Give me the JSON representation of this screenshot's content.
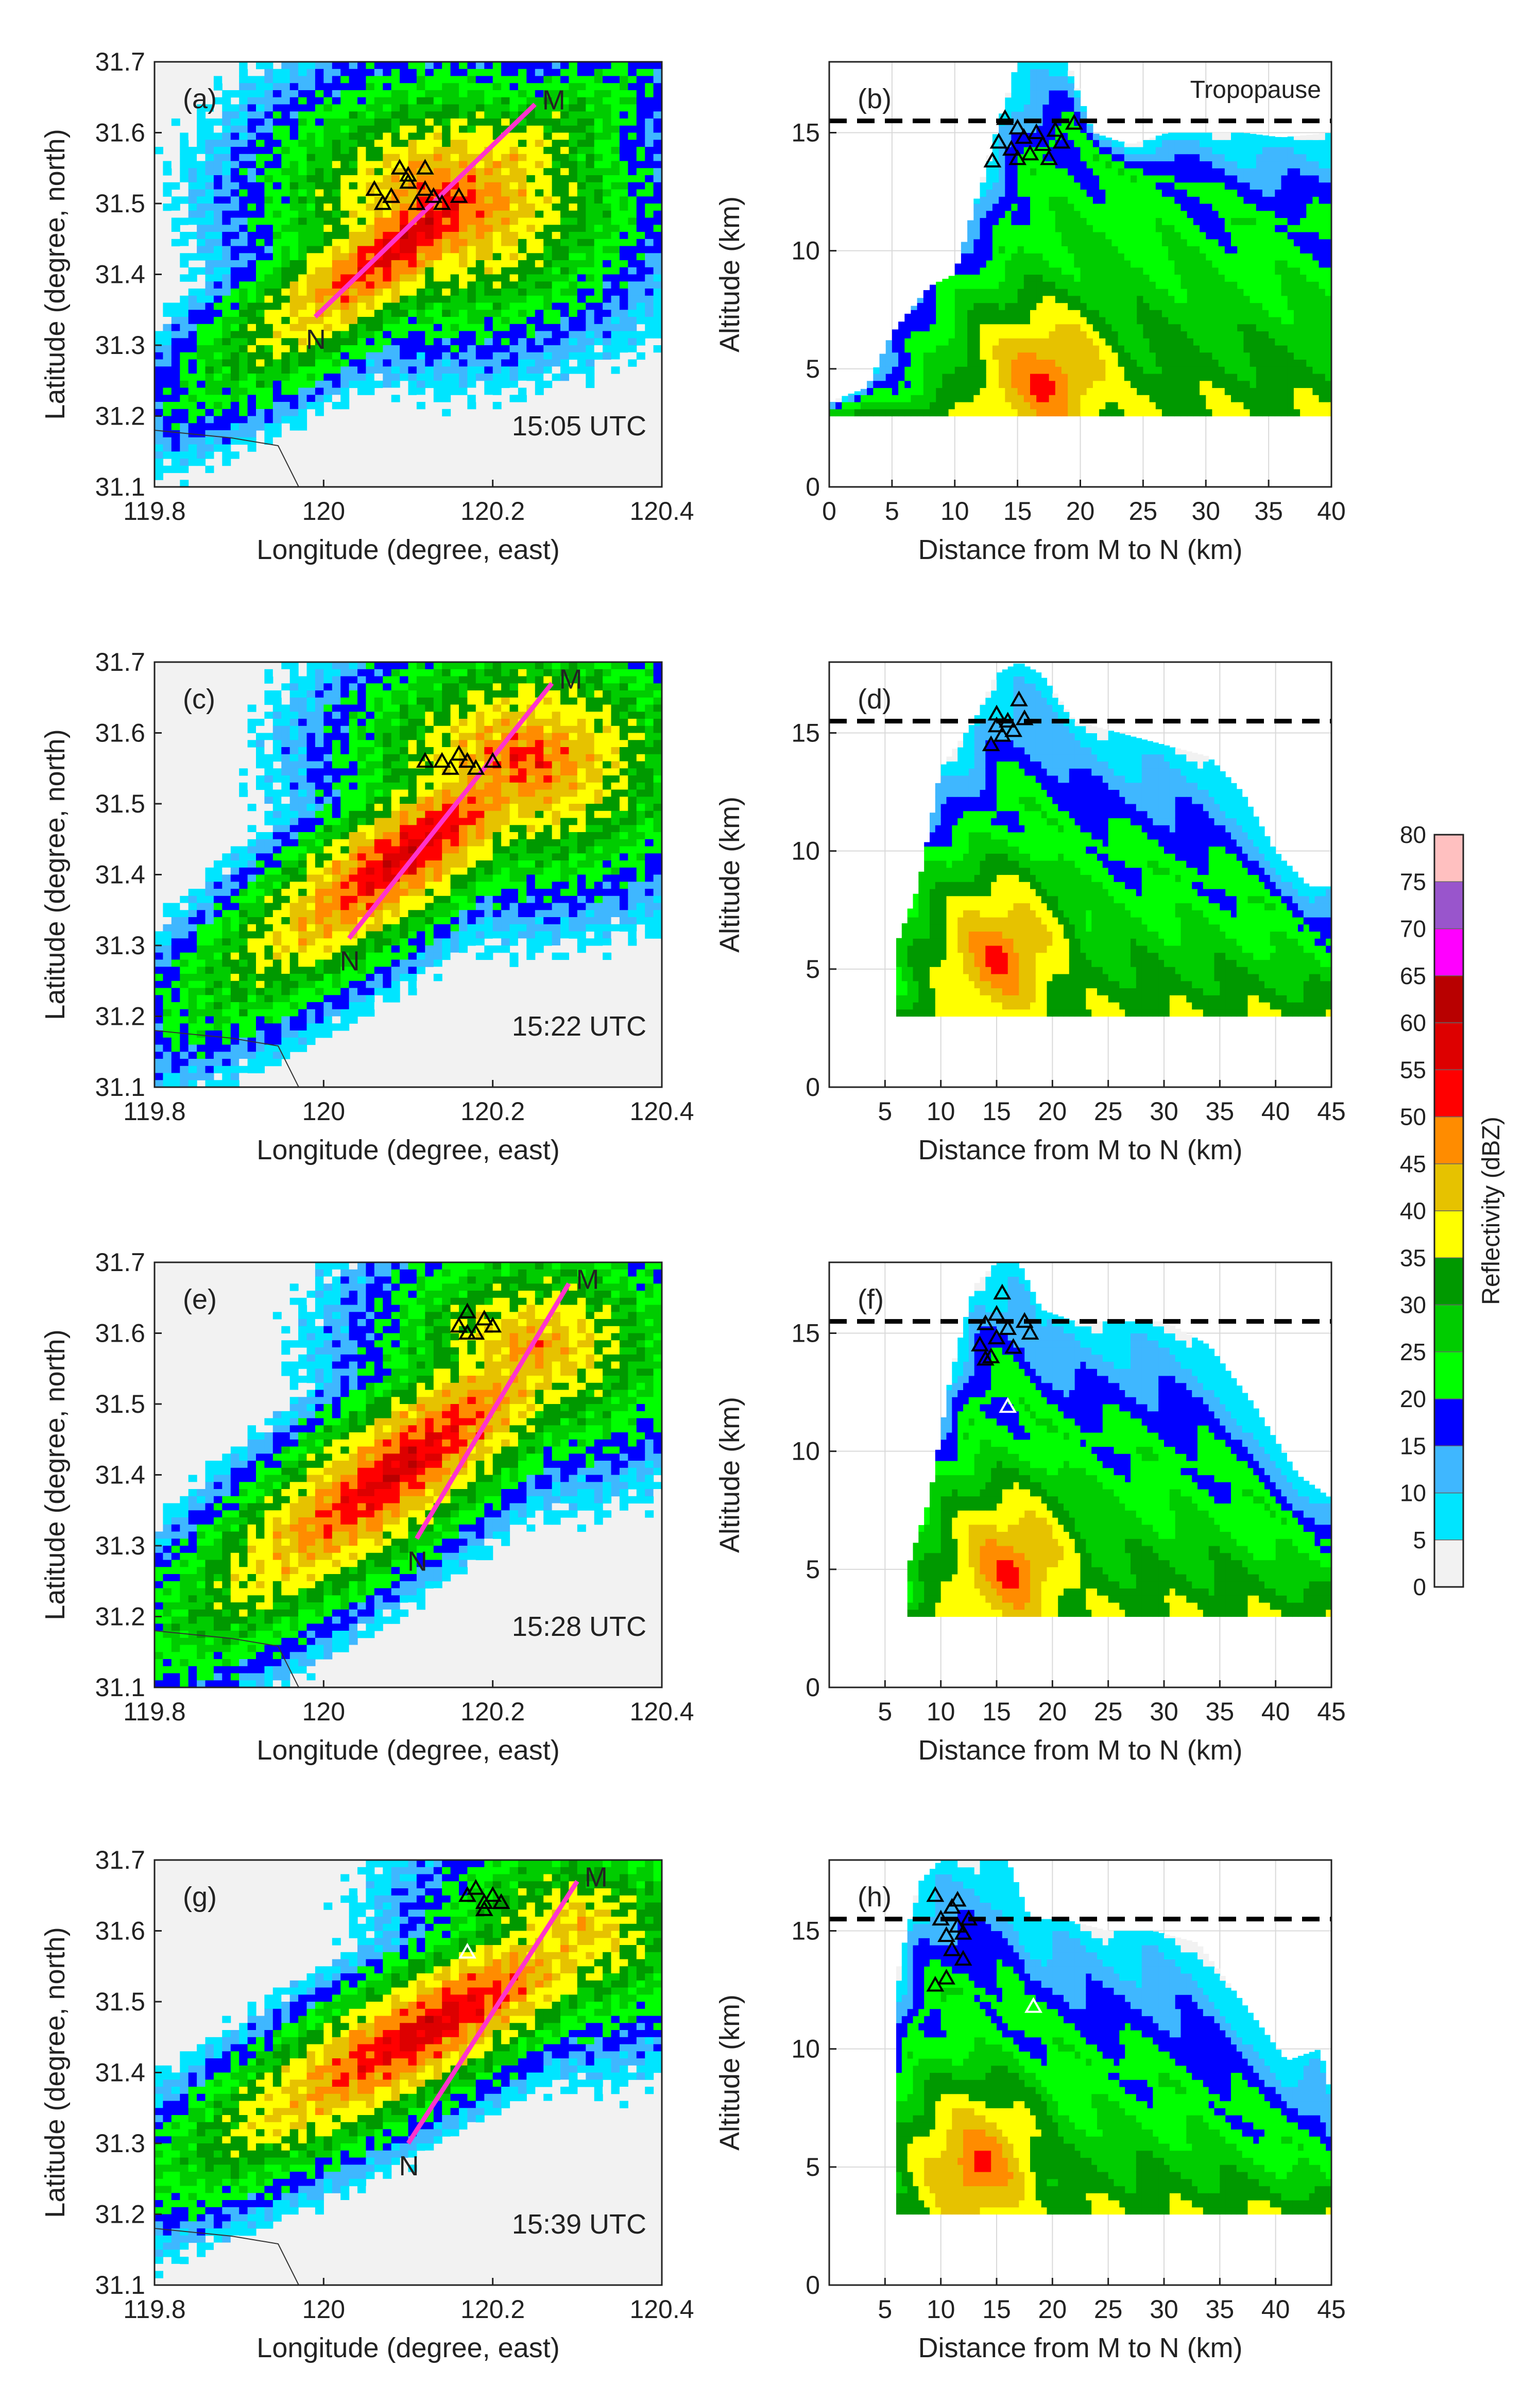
{
  "colorbar": {
    "label": "Reflectivity (dBZ)",
    "levels": [
      0,
      5,
      10,
      15,
      20,
      25,
      30,
      35,
      40,
      45,
      50,
      55,
      60,
      65,
      70,
      75,
      80
    ],
    "colors": [
      "#f2f2f2",
      "#00e5ff",
      "#3fb7ff",
      "#0000ff",
      "#00ff00",
      "#00cc00",
      "#009900",
      "#ffff00",
      "#e6c200",
      "#ff8c00",
      "#ff0000",
      "#dd0000",
      "#b80000",
      "#ff00ff",
      "#9955cc",
      "#ffc0c0"
    ]
  },
  "tropopause_label": "Tropopause",
  "tropopause_km": 15.5,
  "chart_data": [
    {
      "type": "heatmap",
      "panel_label": "(a)",
      "time_label": "15:05 UTC",
      "xlabel": "Longitude (degree, east)",
      "ylabel": "Latitude (degree, north)",
      "xlim": [
        119.8,
        120.4
      ],
      "ylim": [
        31.1,
        31.7
      ],
      "xticks": [
        "119.8",
        "120",
        "120.2",
        "120.4"
      ],
      "yticks": [
        "31.1",
        "31.2",
        "31.3",
        "31.4",
        "31.5",
        "31.6",
        "31.7"
      ],
      "line_endpoints": [
        {
          "label": "M",
          "lon": 120.25,
          "lat": 31.64
        },
        {
          "label": "N",
          "lon": 119.99,
          "lat": 31.34
        }
      ],
      "storm_axis": [
        [
          119.86,
          31.24
        ],
        [
          120.34,
          31.66
        ]
      ],
      "storm_halfwidth": [
        0.17,
        0.1
      ],
      "core": {
        "lon": 120.15,
        "lat": 31.5,
        "dbz": 54
      },
      "lightning": [
        [
          120.06,
          31.52
        ],
        [
          120.08,
          31.51
        ],
        [
          120.09,
          31.55
        ],
        [
          120.1,
          31.53
        ],
        [
          120.11,
          31.5
        ],
        [
          120.12,
          31.52
        ],
        [
          120.13,
          31.51
        ],
        [
          120.14,
          31.5
        ],
        [
          120.16,
          31.51
        ],
        [
          120.07,
          31.5
        ],
        [
          120.1,
          31.54
        ],
        [
          120.12,
          31.55
        ]
      ]
    },
    {
      "type": "heatmap",
      "panel_label": "(b)",
      "xlabel": "Distance from M to N (km)",
      "ylabel": "Altitude (km)",
      "xlim": [
        0,
        40
      ],
      "ylim": [
        0,
        18
      ],
      "xticks": [
        "0",
        "5",
        "10",
        "15",
        "20",
        "25",
        "30",
        "35",
        "40"
      ],
      "yticks": [
        "0",
        "5",
        "10",
        "15"
      ],
      "show_tropopause_label": true,
      "columns": [
        [
          0,
          3.0,
          3.6,
          3.3
        ],
        [
          3,
          3.0,
          4.2,
          3.6
        ],
        [
          5,
          3.0,
          6.5,
          4.0
        ],
        [
          8,
          3.0,
          8.5,
          5.0
        ],
        [
          10,
          3.0,
          9.0,
          6.5
        ],
        [
          13,
          3.0,
          14.5,
          8.5
        ],
        [
          15,
          3.0,
          18.0,
          12.0
        ],
        [
          17,
          3.0,
          18.0,
          14.0
        ],
        [
          19,
          3.0,
          18.0,
          15.0
        ],
        [
          21,
          3.0,
          15.0,
          14.0
        ],
        [
          24,
          3.0,
          14.5,
          13.0
        ],
        [
          27,
          3.0,
          15.0,
          13.0
        ],
        [
          30,
          3.0,
          15.0,
          12.0
        ],
        [
          33,
          3.0,
          15.0,
          11.0
        ],
        [
          36,
          3.0,
          14.8,
          11.0
        ],
        [
          40,
          3.0,
          15.0,
          10.5
        ]
      ],
      "core": {
        "x": 17,
        "z": 4.5,
        "dbz": 52
      },
      "lightning": [
        [
          13,
          13.8
        ],
        [
          13.5,
          14.6
        ],
        [
          14,
          15.6
        ],
        [
          14.5,
          14.3
        ],
        [
          15,
          13.9
        ],
        [
          15,
          15.2
        ],
        [
          15.5,
          14.8
        ],
        [
          16,
          14.1
        ],
        [
          16.5,
          15.0
        ],
        [
          17,
          14.5
        ],
        [
          17.5,
          13.9
        ],
        [
          18,
          15.1
        ],
        [
          18.5,
          14.6
        ],
        [
          19.5,
          15.4
        ]
      ]
    },
    {
      "type": "heatmap",
      "panel_label": "(c)",
      "time_label": "15:22 UTC",
      "xlabel": "Longitude (degree, east)",
      "ylabel": "Latitude (degree, north)",
      "xlim": [
        119.8,
        120.4
      ],
      "ylim": [
        31.1,
        31.7
      ],
      "xticks": [
        "119.8",
        "120",
        "120.2",
        "120.4"
      ],
      "yticks": [
        "31.1",
        "31.2",
        "31.3",
        "31.4",
        "31.5",
        "31.6",
        "31.7"
      ],
      "line_endpoints": [
        {
          "label": "M",
          "lon": 120.27,
          "lat": 31.67
        },
        {
          "label": "N",
          "lon": 120.03,
          "lat": 31.31
        }
      ],
      "storm_axis": [
        [
          119.84,
          31.2
        ],
        [
          120.36,
          31.66
        ]
      ],
      "storm_halfwidth": [
        0.18,
        0.11
      ],
      "core": {
        "lon": 120.24,
        "lat": 31.56,
        "dbz": 53
      },
      "lightning": [
        [
          120.12,
          31.56
        ],
        [
          120.14,
          31.56
        ],
        [
          120.15,
          31.55
        ],
        [
          120.16,
          31.57
        ],
        [
          120.17,
          31.56
        ],
        [
          120.18,
          31.55
        ],
        [
          120.2,
          31.56
        ]
      ]
    },
    {
      "type": "heatmap",
      "panel_label": "(d)",
      "xlabel": "Distance from M to N (km)",
      "ylabel": "Altitude (km)",
      "xlim": [
        0,
        45
      ],
      "ylim": [
        0,
        18
      ],
      "xticks": [
        "5",
        "10",
        "15",
        "20",
        "25",
        "30",
        "35",
        "40",
        "45"
      ],
      "yticks": [
        "0",
        "5",
        "10",
        "15"
      ],
      "columns": [
        [
          6,
          3.0,
          6.0,
          4.5
        ],
        [
          8,
          3.0,
          8.5,
          5.5
        ],
        [
          10,
          3.0,
          13.5,
          8.0
        ],
        [
          13,
          3.0,
          15.5,
          10.0
        ],
        [
          15,
          3.0,
          17.5,
          11.5
        ],
        [
          17,
          3.0,
          18.0,
          12.0
        ],
        [
          19,
          3.0,
          17.5,
          11.5
        ],
        [
          22,
          3.0,
          15.5,
          10.5
        ],
        [
          26,
          3.0,
          15.0,
          9.5
        ],
        [
          30,
          3.0,
          14.5,
          9.0
        ],
        [
          34,
          3.0,
          14.0,
          8.5
        ],
        [
          37,
          3.0,
          12.5,
          8.0
        ],
        [
          40,
          3.0,
          10.0,
          7.5
        ],
        [
          43,
          3.0,
          8.5,
          6.5
        ],
        [
          45,
          3.0,
          8.5,
          6.0
        ]
      ],
      "core": {
        "x": 15,
        "z": 5.5,
        "dbz": 52
      },
      "lightning": [
        [
          14.5,
          14.5
        ],
        [
          15,
          15.3
        ],
        [
          15.5,
          14.9
        ],
        [
          16,
          15.5
        ],
        [
          16.5,
          15.1
        ],
        [
          17,
          16.4
        ],
        [
          17.5,
          15.6
        ],
        [
          15,
          15.8
        ]
      ]
    },
    {
      "type": "heatmap",
      "panel_label": "(e)",
      "time_label": "15:28 UTC",
      "xlabel": "Longitude (degree, east)",
      "ylabel": "Latitude (degree, north)",
      "xlim": [
        119.8,
        120.4
      ],
      "ylim": [
        31.1,
        31.7
      ],
      "xticks": [
        "119.8",
        "120",
        "120.2",
        "120.4"
      ],
      "yticks": [
        "31.1",
        "31.2",
        "31.3",
        "31.4",
        "31.5",
        "31.6",
        "31.7"
      ],
      "line_endpoints": [
        {
          "label": "M",
          "lon": 120.29,
          "lat": 31.67
        },
        {
          "label": "N",
          "lon": 120.11,
          "lat": 31.31
        }
      ],
      "storm_axis": [
        [
          119.82,
          31.16
        ],
        [
          120.36,
          31.66
        ]
      ],
      "storm_halfwidth": [
        0.2,
        0.12
      ],
      "core": {
        "lon": 120.25,
        "lat": 31.58,
        "dbz": 48
      },
      "lightning": [
        [
          120.16,
          31.61
        ],
        [
          120.17,
          31.63
        ],
        [
          120.18,
          31.6
        ],
        [
          120.19,
          31.62
        ],
        [
          120.2,
          31.61
        ],
        [
          120.17,
          31.6
        ]
      ]
    },
    {
      "type": "heatmap",
      "panel_label": "(f)",
      "xlabel": "Distance from M to N (km)",
      "ylabel": "Altitude (km)",
      "xlim": [
        0,
        45
      ],
      "ylim": [
        0,
        18
      ],
      "xticks": [
        "5",
        "10",
        "15",
        "20",
        "25",
        "30",
        "35",
        "40",
        "45"
      ],
      "yticks": [
        "0",
        "5",
        "10",
        "15"
      ],
      "columns": [
        [
          7,
          3.0,
          5.0,
          4.0
        ],
        [
          9,
          3.0,
          8.0,
          5.5
        ],
        [
          11,
          3.0,
          13.5,
          9.0
        ],
        [
          13,
          3.0,
          17.0,
          11.5
        ],
        [
          15,
          3.0,
          18.0,
          12.5
        ],
        [
          17,
          3.0,
          18.0,
          12.0
        ],
        [
          19,
          3.0,
          16.0,
          11.0
        ],
        [
          22,
          3.0,
          15.5,
          10.5
        ],
        [
          26,
          3.0,
          15.5,
          10.0
        ],
        [
          30,
          3.0,
          15.5,
          9.5
        ],
        [
          34,
          3.0,
          14.5,
          9.0
        ],
        [
          38,
          3.0,
          12.0,
          8.0
        ],
        [
          42,
          3.0,
          9.0,
          6.5
        ],
        [
          45,
          3.0,
          8.0,
          6.0
        ]
      ],
      "core": {
        "x": 16,
        "z": 5,
        "dbz": 52
      },
      "lightning": [
        [
          13.5,
          14.5
        ],
        [
          14,
          15.4
        ],
        [
          14.5,
          14.0
        ],
        [
          15,
          15.8
        ],
        [
          15.5,
          16.7
        ],
        [
          15,
          14.8
        ],
        [
          16,
          15.2
        ],
        [
          16.5,
          14.4
        ],
        [
          17.5,
          15.5
        ],
        [
          18,
          15.0
        ],
        [
          14,
          13.9
        ]
      ],
      "lightning_white": [
        [
          16,
          11.9
        ]
      ]
    },
    {
      "type": "heatmap",
      "panel_label": "(g)",
      "time_label": "15:39 UTC",
      "xlabel": "Longitude (degree, east)",
      "ylabel": "Latitude (degree, north)",
      "xlim": [
        119.8,
        120.4
      ],
      "ylim": [
        31.1,
        31.7
      ],
      "xticks": [
        "119.8",
        "120",
        "120.2",
        "120.4"
      ],
      "yticks": [
        "31.1",
        "31.2",
        "31.3",
        "31.4",
        "31.5",
        "31.6",
        "31.7"
      ],
      "line_endpoints": [
        {
          "label": "M",
          "lon": 120.3,
          "lat": 31.67
        },
        {
          "label": "N",
          "lon": 120.1,
          "lat": 31.3
        }
      ],
      "storm_axis": [
        [
          119.86,
          31.28
        ],
        [
          120.38,
          31.64
        ]
      ],
      "storm_halfwidth": [
        0.2,
        0.11
      ],
      "core": {
        "lon": 120.3,
        "lat": 31.6,
        "dbz": 45
      },
      "lightning": [
        [
          120.17,
          31.65
        ],
        [
          120.18,
          31.66
        ],
        [
          120.19,
          31.64
        ],
        [
          120.2,
          31.65
        ],
        [
          120.21,
          31.64
        ],
        [
          120.19,
          31.63
        ]
      ],
      "lightning_white": [
        [
          120.17,
          31.57
        ]
      ]
    },
    {
      "type": "heatmap",
      "panel_label": "(h)",
      "xlabel": "Distance from M to N (km)",
      "ylabel": "Altitude (km)",
      "xlim": [
        0,
        45
      ],
      "ylim": [
        0,
        18
      ],
      "xticks": [
        "5",
        "10",
        "15",
        "20",
        "25",
        "30",
        "35",
        "40",
        "45"
      ],
      "yticks": [
        "0",
        "5",
        "10",
        "15"
      ],
      "columns": [
        [
          6,
          3.0,
          13.0,
          7.0
        ],
        [
          8,
          3.0,
          17.0,
          11.0
        ],
        [
          10,
          3.0,
          18.0,
          12.0
        ],
        [
          12,
          3.0,
          18.0,
          12.5
        ],
        [
          14,
          3.0,
          18.0,
          12.0
        ],
        [
          16,
          3.0,
          18.0,
          11.0
        ],
        [
          18,
          3.0,
          15.5,
          10.5
        ],
        [
          21,
          3.0,
          15.5,
          10.0
        ],
        [
          25,
          3.0,
          15.0,
          9.0
        ],
        [
          29,
          3.0,
          15.0,
          8.5
        ],
        [
          33,
          3.0,
          14.5,
          8.0
        ],
        [
          37,
          3.0,
          12.0,
          7.0
        ],
        [
          41,
          3.0,
          9.5,
          6.0
        ],
        [
          44,
          3.0,
          10.0,
          5.5
        ],
        [
          45,
          3.0,
          8.0,
          5.0
        ]
      ],
      "core": {
        "x": 13,
        "z": 5,
        "dbz": 52
      },
      "lightning": [
        [
          9.5,
          16.5
        ],
        [
          10,
          15.5
        ],
        [
          10.5,
          14.8
        ],
        [
          11,
          16.0
        ],
        [
          11,
          14.2
        ],
        [
          11.5,
          15.2
        ],
        [
          12,
          13.8
        ],
        [
          12,
          14.9
        ],
        [
          10.5,
          13.0
        ],
        [
          9.5,
          12.7
        ],
        [
          11.5,
          16.3
        ],
        [
          12.5,
          15.5
        ]
      ],
      "lightning_white": [
        [
          18.3,
          11.8
        ]
      ]
    }
  ]
}
